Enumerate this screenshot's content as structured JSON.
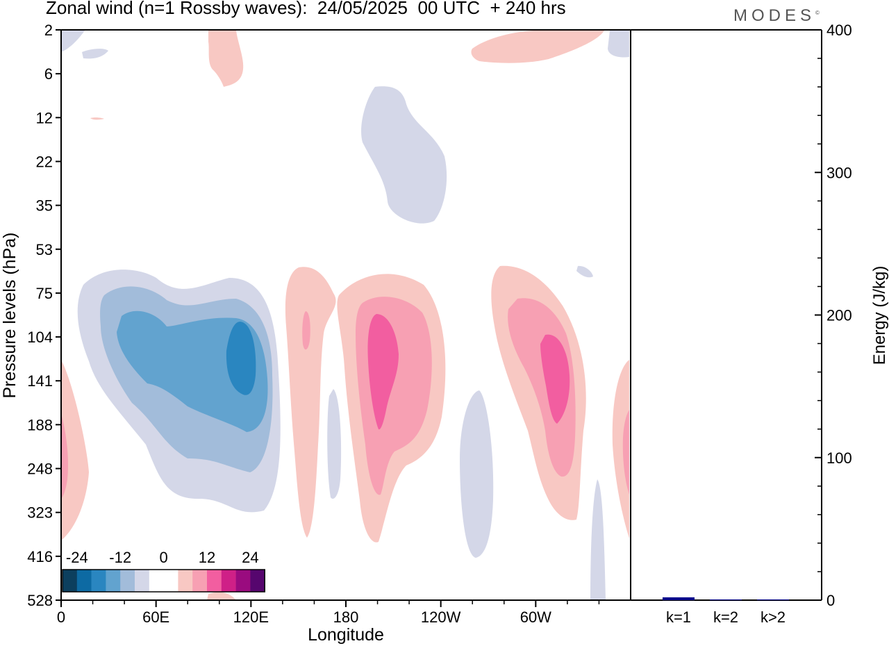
{
  "header": {
    "title": "Zonal wind (n=1 Rossby waves):  24/05/2025  00 UTC  + 240 hrs",
    "brand": "MODES",
    "brand_mark": "©"
  },
  "chart_data": [
    {
      "type": "heatmap",
      "title": "Zonal wind (n=1 Rossby waves):  24/05/2025  00 UTC  + 240 hrs",
      "xlabel": "Longitude",
      "ylabel": "Pressure levels (hPa)",
      "x_ticks": [
        "0",
        "60E",
        "120E",
        "180",
        "120W",
        "60W"
      ],
      "y_ticks": [
        "2",
        "6",
        "12",
        "22",
        "35",
        "53",
        "75",
        "104",
        "141",
        "188",
        "248",
        "323",
        "416",
        "528"
      ],
      "xlim": [
        0,
        360
      ],
      "colorbar": {
        "labels": [
          "-24",
          "-12",
          "0",
          "12",
          "24"
        ],
        "colors": [
          "#0c3f5e",
          "#0d6aa3",
          "#2a86c0",
          "#62a3cf",
          "#a2bcda",
          "#d4d7e8",
          "#ffffff",
          "#ffffff",
          "#f8c8c3",
          "#f7a0b3",
          "#f25ea0",
          "#cf2087",
          "#9a0b7f",
          "#56066e"
        ]
      },
      "regions": [
        {
          "sign": "negative",
          "lon_range": [
            10,
            130
          ],
          "p_range": [
            60,
            330
          ],
          "min_value": -18
        },
        {
          "sign": "positive",
          "lon_range": [
            140,
            165
          ],
          "p_range": [
            60,
            416
          ],
          "max_value": 8
        },
        {
          "sign": "positive",
          "lon_range": [
            180,
            245
          ],
          "p_range": [
            60,
            416
          ],
          "max_value": 16
        },
        {
          "sign": "negative",
          "lon_range": [
            250,
            275
          ],
          "p_range": [
            150,
            416
          ],
          "min_value": -4
        },
        {
          "sign": "positive",
          "lon_range": [
            270,
            335
          ],
          "p_range": [
            60,
            330
          ],
          "max_value": 16
        },
        {
          "sign": "negative",
          "lon_range": [
            190,
            245
          ],
          "p_range": [
            8,
            40
          ],
          "min_value": -4
        },
        {
          "sign": "positive",
          "lon_range": [
            0,
            18
          ],
          "p_range": [
            150,
            416
          ],
          "max_value": 8
        },
        {
          "sign": "positive",
          "lon_range": [
            345,
            360
          ],
          "p_range": [
            150,
            416
          ],
          "max_value": 8
        }
      ]
    },
    {
      "type": "bar",
      "categories": [
        "k=1",
        "k=2",
        "k>2"
      ],
      "values": [
        2,
        0.5,
        0.5
      ],
      "ylabel": "Energy (J/kg)",
      "ylim": [
        0,
        400
      ],
      "y_ticks": [
        "0",
        "100",
        "200",
        "300",
        "400"
      ],
      "bar_color": "#0a0a8c"
    }
  ]
}
